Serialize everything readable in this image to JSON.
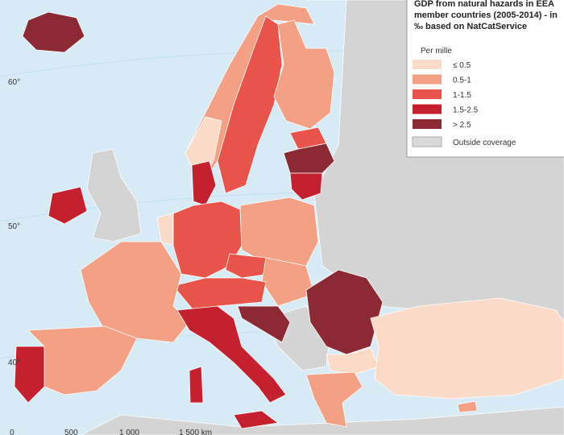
{
  "title": "GDP from natural hazards in EEA member countries (2005-2014) - in ‰ based on NatCatService",
  "legend": {
    "title": "Per mille",
    "items": [
      {
        "label": "≤ 0.5",
        "color": "#fcdac8"
      },
      {
        "label": "0.5-1",
        "color": "#f3a084"
      },
      {
        "label": "1-1.5",
        "color": "#e8534a"
      },
      {
        "label": "1.5-2.5",
        "color": "#c5202e"
      },
      {
        "label": "> 2.5",
        "color": "#8b2a33"
      },
      {
        "label": "Outside coverage",
        "color": "#d9d9d9"
      }
    ]
  },
  "graticule_labels": [
    "60°",
    "50°",
    "40°"
  ],
  "scale_bar": [
    "0",
    "500",
    "1 000",
    "1 500 km"
  ]
}
